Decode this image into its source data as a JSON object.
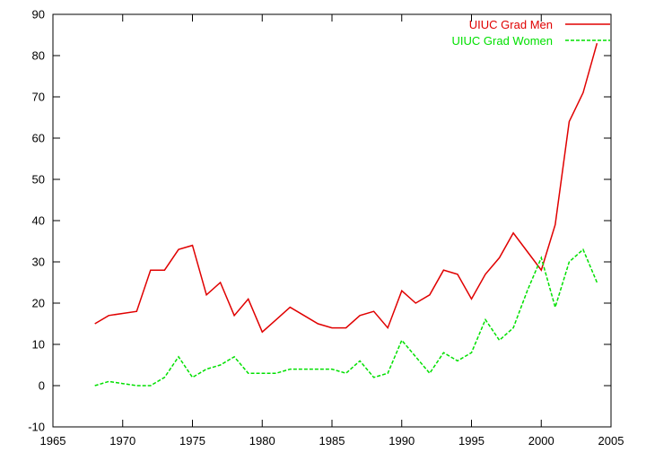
{
  "chart_data": {
    "type": "line",
    "title": "",
    "xlabel": "",
    "ylabel": "",
    "xlim": [
      1965,
      2005
    ],
    "ylim": [
      -10,
      90
    ],
    "xticks": [
      1965,
      1970,
      1975,
      1980,
      1985,
      1990,
      1995,
      2000,
      2005
    ],
    "yticks": [
      -10,
      0,
      10,
      20,
      30,
      40,
      50,
      60,
      70,
      80,
      90
    ],
    "grid": false,
    "legend_position": "top-right",
    "series": [
      {
        "name": "UIUC Grad Men",
        "color": "#e00000",
        "style": "solid",
        "points": [
          [
            1968,
            15
          ],
          [
            1969,
            17
          ],
          [
            1970,
            17.5
          ],
          [
            1971,
            18
          ],
          [
            1972,
            28
          ],
          [
            1973,
            28
          ],
          [
            1974,
            33
          ],
          [
            1975,
            34
          ],
          [
            1976,
            22
          ],
          [
            1977,
            25
          ],
          [
            1978,
            17
          ],
          [
            1979,
            21
          ],
          [
            1980,
            13
          ],
          [
            1981,
            16
          ],
          [
            1982,
            19
          ],
          [
            1983,
            17
          ],
          [
            1984,
            15
          ],
          [
            1985,
            14
          ],
          [
            1986,
            14
          ],
          [
            1987,
            17
          ],
          [
            1988,
            18
          ],
          [
            1989,
            14
          ],
          [
            1990,
            23
          ],
          [
            1991,
            20
          ],
          [
            1992,
            22
          ],
          [
            1993,
            28
          ],
          [
            1994,
            27
          ],
          [
            1995,
            21
          ],
          [
            1996,
            27
          ],
          [
            1997,
            31
          ],
          [
            1998,
            37
          ],
          [
            1999,
            32.5
          ],
          [
            2000,
            28
          ],
          [
            2001,
            39
          ],
          [
            2002,
            64
          ],
          [
            2003,
            71
          ],
          [
            2004,
            83
          ]
        ]
      },
      {
        "name": "UIUC Grad Women",
        "color": "#00e000",
        "style": "dashed",
        "points": [
          [
            1968,
            0
          ],
          [
            1969,
            1
          ],
          [
            1970,
            0.5
          ],
          [
            1971,
            0
          ],
          [
            1972,
            0
          ],
          [
            1973,
            2
          ],
          [
            1974,
            7
          ],
          [
            1975,
            2
          ],
          [
            1976,
            4
          ],
          [
            1977,
            5
          ],
          [
            1978,
            7
          ],
          [
            1979,
            3
          ],
          [
            1980,
            3
          ],
          [
            1981,
            3
          ],
          [
            1982,
            4
          ],
          [
            1983,
            4
          ],
          [
            1984,
            4
          ],
          [
            1985,
            4
          ],
          [
            1986,
            3
          ],
          [
            1987,
            6
          ],
          [
            1988,
            2
          ],
          [
            1989,
            3
          ],
          [
            1990,
            11
          ],
          [
            1991,
            7
          ],
          [
            1992,
            3
          ],
          [
            1993,
            8
          ],
          [
            1994,
            6
          ],
          [
            1995,
            8
          ],
          [
            1996,
            16
          ],
          [
            1997,
            11
          ],
          [
            1998,
            14
          ],
          [
            1999,
            23
          ],
          [
            2000,
            31
          ],
          [
            2001,
            19
          ],
          [
            2002,
            30
          ],
          [
            2003,
            33
          ],
          [
            2004,
            25
          ]
        ]
      }
    ]
  }
}
